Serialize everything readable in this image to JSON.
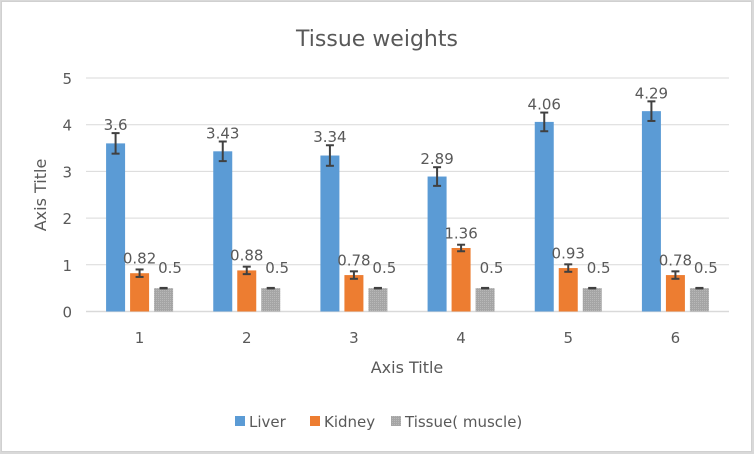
{
  "chart_data": {
    "type": "bar",
    "title": "Tissue weights",
    "xlabel": "Axis Title",
    "ylabel": "Axis Title",
    "ylim": [
      0,
      5
    ],
    "yticks": [
      "0",
      "1",
      "2",
      "3",
      "4",
      "5"
    ],
    "categories": [
      "1",
      "2",
      "3",
      "4",
      "5",
      "6"
    ],
    "grid": true,
    "legend_position": "bottom",
    "series": [
      {
        "name": "Liver",
        "color": "#5b9bd5",
        "values": [
          3.6,
          3.43,
          3.34,
          2.89,
          4.06,
          4.29
        ],
        "labels": [
          "3.6",
          "3.43",
          "3.34",
          "2.89",
          "4.06",
          "4.29"
        ],
        "errors": [
          0.22,
          0.21,
          0.22,
          0.2,
          0.2,
          0.21
        ]
      },
      {
        "name": "Kidney",
        "color": "#ed7d31",
        "values": [
          0.82,
          0.88,
          0.78,
          1.36,
          0.93,
          0.78
        ],
        "labels": [
          "0.82",
          "0.88",
          "0.78",
          "1.36",
          "0.93",
          "0.78"
        ],
        "errors": [
          0.08,
          0.08,
          0.08,
          0.07,
          0.08,
          0.08
        ]
      },
      {
        "name": "Tissue( muscle)",
        "color": "#a5a5a5",
        "values": [
          0.5,
          0.5,
          0.5,
          0.5,
          0.5,
          0.5
        ],
        "labels": [
          "0.5",
          "0.5",
          "0.5",
          "0.5",
          "0.5",
          "0.5"
        ],
        "errors": [
          0.005,
          0.005,
          0.005,
          0.005,
          0.005,
          0.005
        ]
      }
    ]
  }
}
